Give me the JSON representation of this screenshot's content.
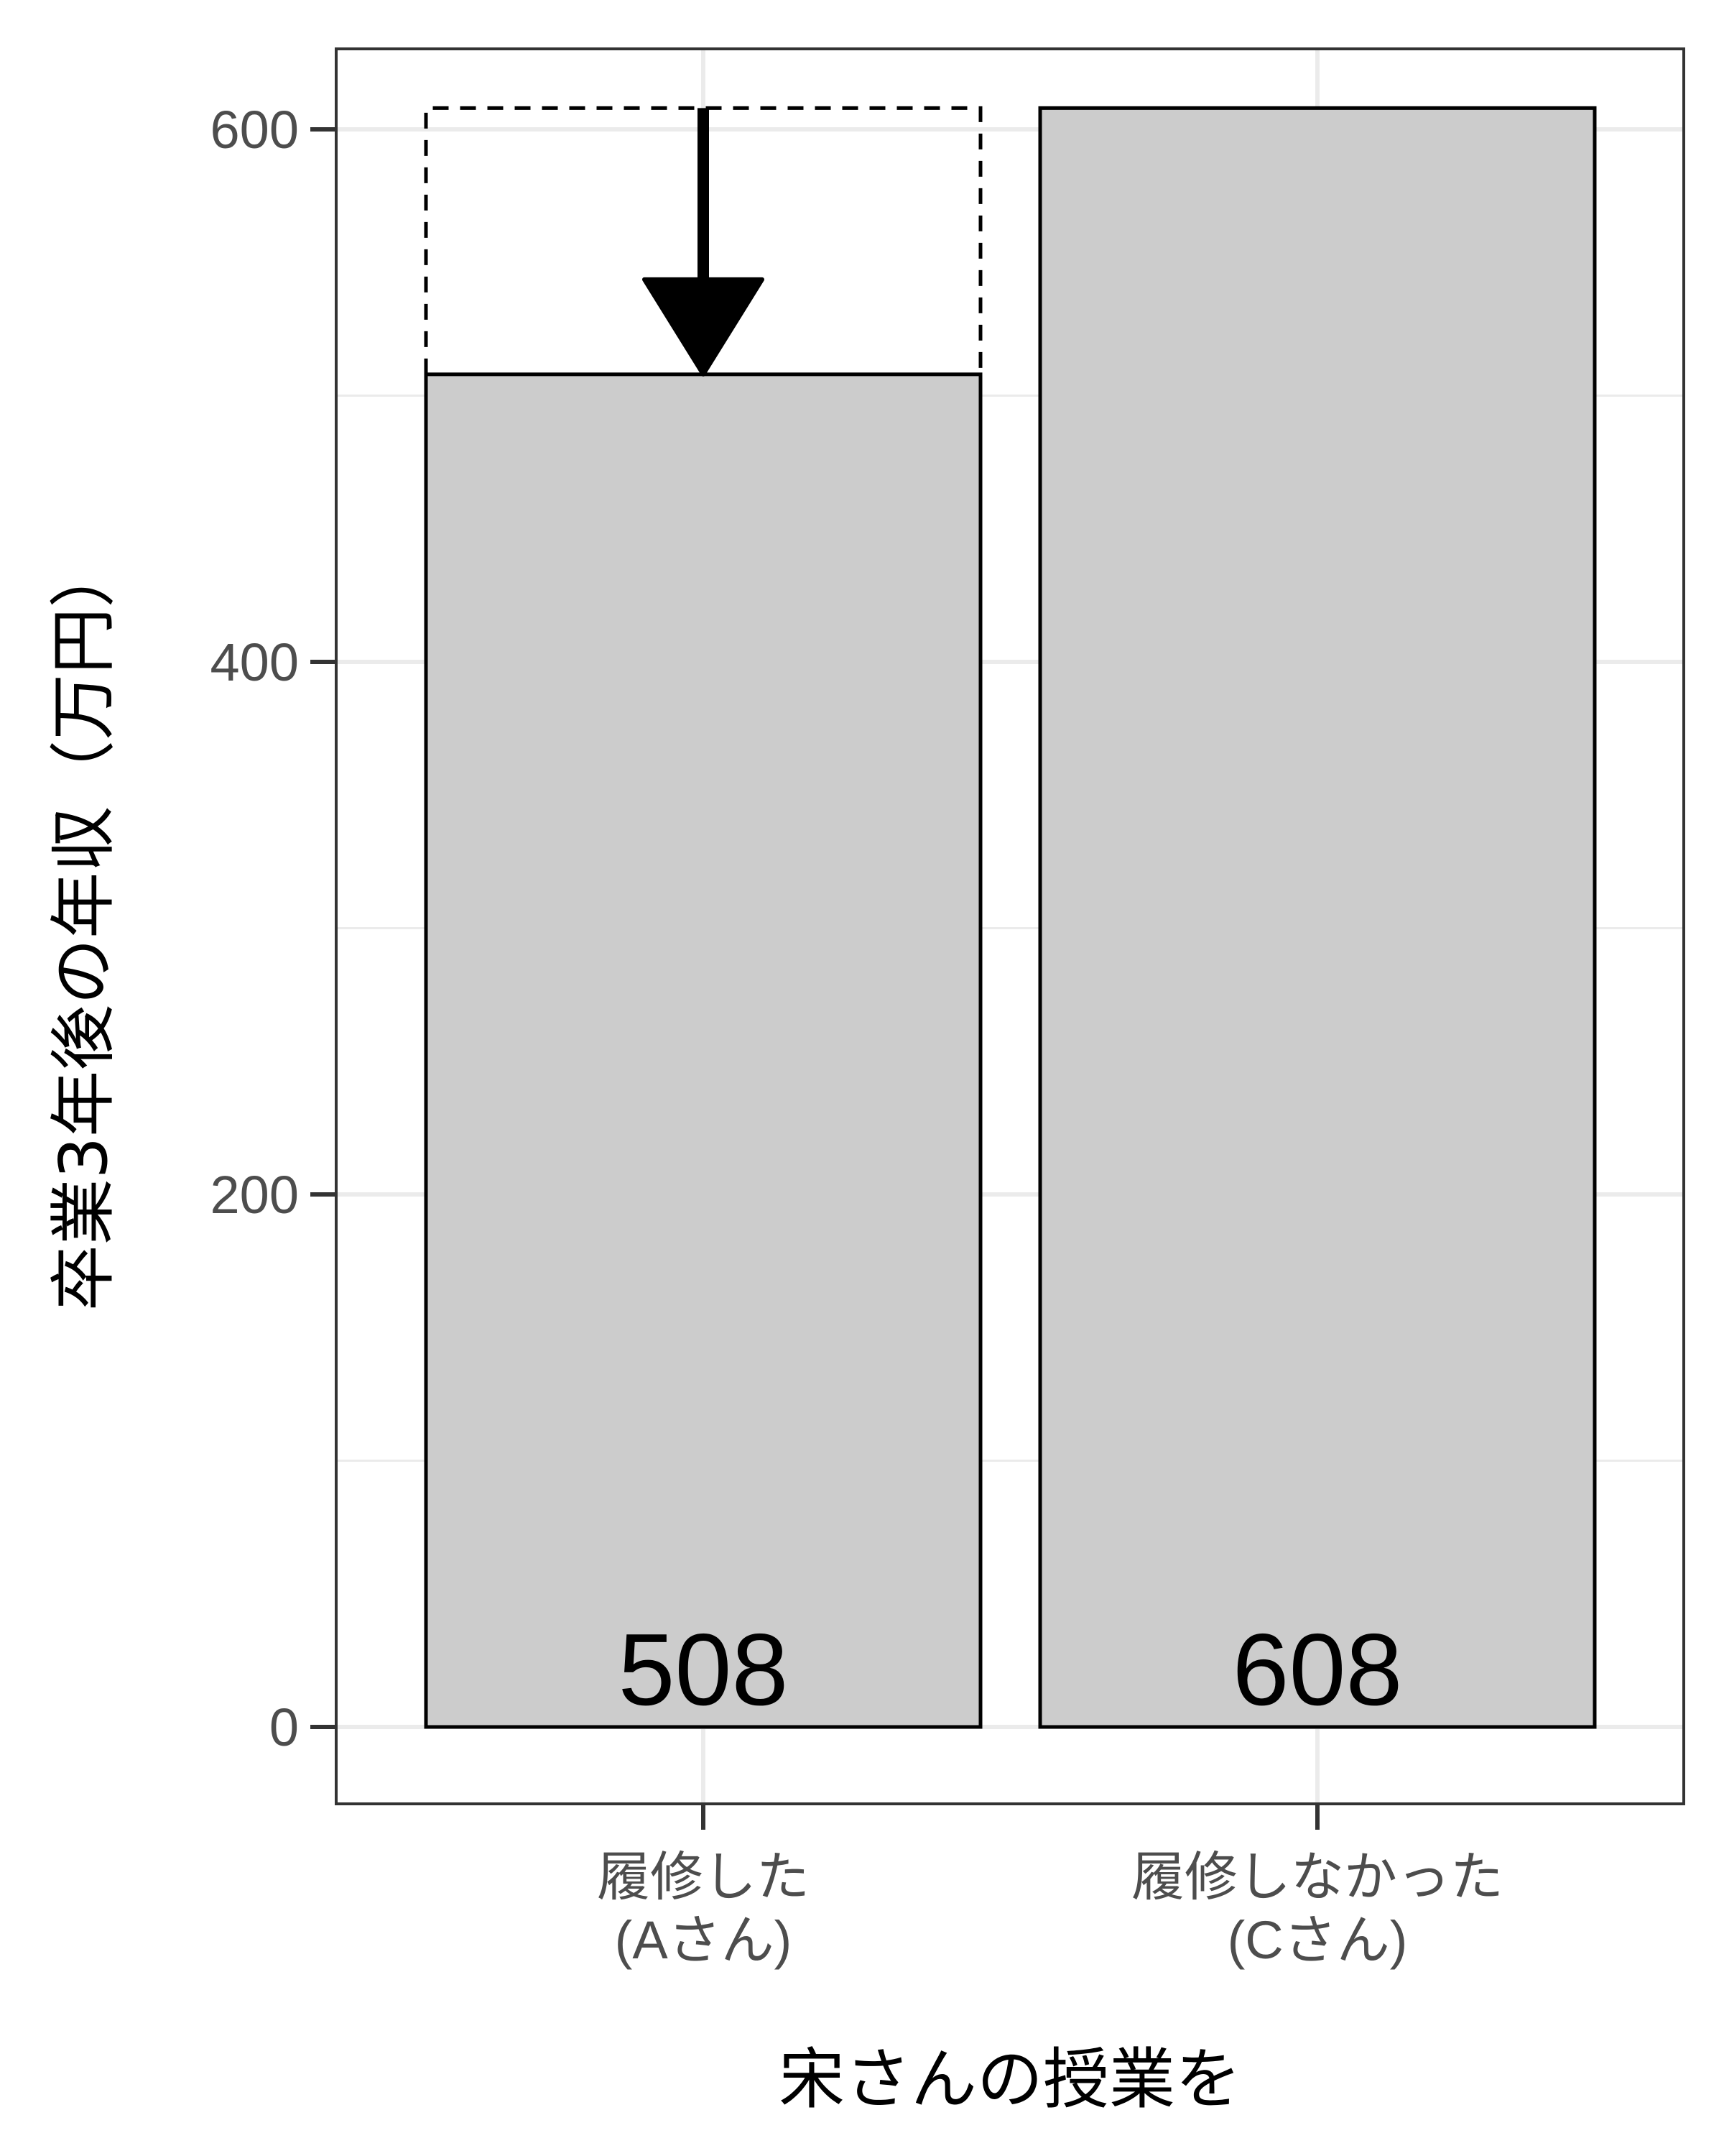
{
  "chart_data": {
    "type": "bar",
    "title": "",
    "xlabel": "宋さんの授業を",
    "ylabel": "卒業3年後の年収（万円）",
    "categories": [
      [
        "履修した",
        "(Aさん)"
      ],
      [
        "履修しなかった",
        "(Cさん)"
      ]
    ],
    "values": [
      508,
      608
    ],
    "data_labels": [
      "508",
      "608"
    ],
    "ylim": [
      -29,
      630
    ],
    "yticks": [
      0,
      200,
      400,
      600
    ],
    "ytick_labels": [
      "0",
      "200",
      "400",
      "600"
    ],
    "grid": true,
    "legend": "none",
    "annotation": {
      "type": "dashed-outline-with-arrow",
      "category_index": 0,
      "from_value": 608,
      "to_value": 508
    },
    "colors": {
      "bar_fill": "#cccccc",
      "bar_stroke": "#000000",
      "grid": "#ebebeb",
      "panel_border": "#333333",
      "tick_text": "#4d4d4d"
    }
  }
}
